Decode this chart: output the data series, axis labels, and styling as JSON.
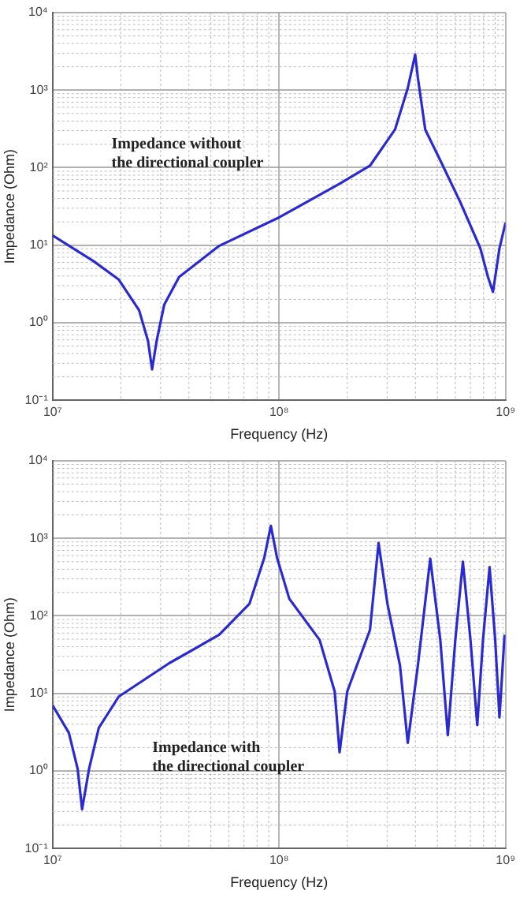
{
  "chart_data": [
    {
      "type": "line",
      "xlabel": "Frequency (Hz)",
      "ylabel": "Impedance (Ohm)",
      "log": "xy",
      "grid": true,
      "legend": false,
      "marker": "none",
      "line_style": "solid",
      "annotations": [
        "Impedance without\nthe directional coupler"
      ],
      "xlim": [
        10000000,
        1000000000
      ],
      "xticks": [
        {
          "value": 10000000,
          "label": "10⁷"
        },
        {
          "value": 100000000,
          "label": "10⁸"
        },
        {
          "value": 1000000000,
          "label": "10⁹"
        }
      ],
      "ylim": [
        0.1,
        10000
      ],
      "yticks": [
        {
          "value": 0.1,
          "label": "10⁻¹"
        },
        {
          "value": 1,
          "label": "10⁰"
        },
        {
          "value": 10,
          "label": "10¹"
        },
        {
          "value": 100,
          "label": "10²"
        },
        {
          "value": 1000,
          "label": "10³"
        },
        {
          "value": 10000,
          "label": "10⁴"
        }
      ],
      "series": [
        {
          "color": "#2a2ad0",
          "x": [
            10000000,
            15200000,
            19600000,
            24100000,
            26400000,
            27500000,
            28800000,
            31100000,
            36200000,
            54400000,
            100500000,
            185000000,
            252000000,
            325000000,
            370000000,
            399000000,
            410000000,
            442000000,
            515000000,
            631000000,
            774000000,
            836000000,
            880000000,
            940000000,
            1000000000
          ],
          "values": [
            13.4,
            6.2,
            3.6,
            1.45,
            0.58,
            0.25,
            0.58,
            1.7,
            3.9,
            9.8,
            23,
            62,
            106,
            310,
            1060,
            2880,
            1450,
            310,
            124,
            36,
            9.1,
            3.9,
            2.5,
            9.1,
            19.6
          ]
        }
      ]
    },
    {
      "type": "line",
      "xlabel": "Frequency (Hz)",
      "ylabel": "Impedance (Ohm)",
      "log": "xy",
      "grid": true,
      "legend": false,
      "marker": "none",
      "line_style": "solid",
      "annotations": [
        "Impedance with\nthe directional coupler"
      ],
      "xlim": [
        10000000,
        1000000000
      ],
      "xticks": [
        {
          "value": 10000000,
          "label": "10⁷"
        },
        {
          "value": 100000000,
          "label": "10⁸"
        },
        {
          "value": 1000000000,
          "label": "10⁹"
        }
      ],
      "ylim": [
        0.1,
        10000
      ],
      "yticks": [
        {
          "value": 0.1,
          "label": "10⁻¹"
        },
        {
          "value": 1,
          "label": "10⁰"
        },
        {
          "value": 10,
          "label": "10¹"
        },
        {
          "value": 100,
          "label": "10²"
        },
        {
          "value": 1000,
          "label": "10³"
        },
        {
          "value": 10000,
          "label": "10⁴"
        }
      ],
      "series": [
        {
          "color": "#2a2ad0",
          "x": [
            10000000,
            11800000,
            12900000,
            13500000,
            14500000,
            16000000,
            19600000,
            32700000,
            54400000,
            74000000,
            86000000,
            92000000,
            98000000,
            111000000,
            151000000,
            176000000,
            185000000,
            200000000,
            252000000,
            275000000,
            301000000,
            342000000,
            370000000,
            410000000,
            465000000,
            515000000,
            556000000,
            600000000,
            648000000,
            700000000,
            750000000,
            795000000,
            850000000,
            900000000,
            940000000,
            990000000
          ],
          "values": [
            7.0,
            3.1,
            1.07,
            0.32,
            1.07,
            3.6,
            9.1,
            24.5,
            57,
            143,
            560,
            1450,
            560,
            166,
            49,
            10.6,
            1.74,
            10.6,
            66,
            870,
            143,
            22.8,
            2.3,
            22.8,
            547,
            49,
            2.9,
            49,
            500,
            49,
            3.9,
            49,
            427,
            49,
            4.9,
            57
          ]
        }
      ]
    }
  ]
}
